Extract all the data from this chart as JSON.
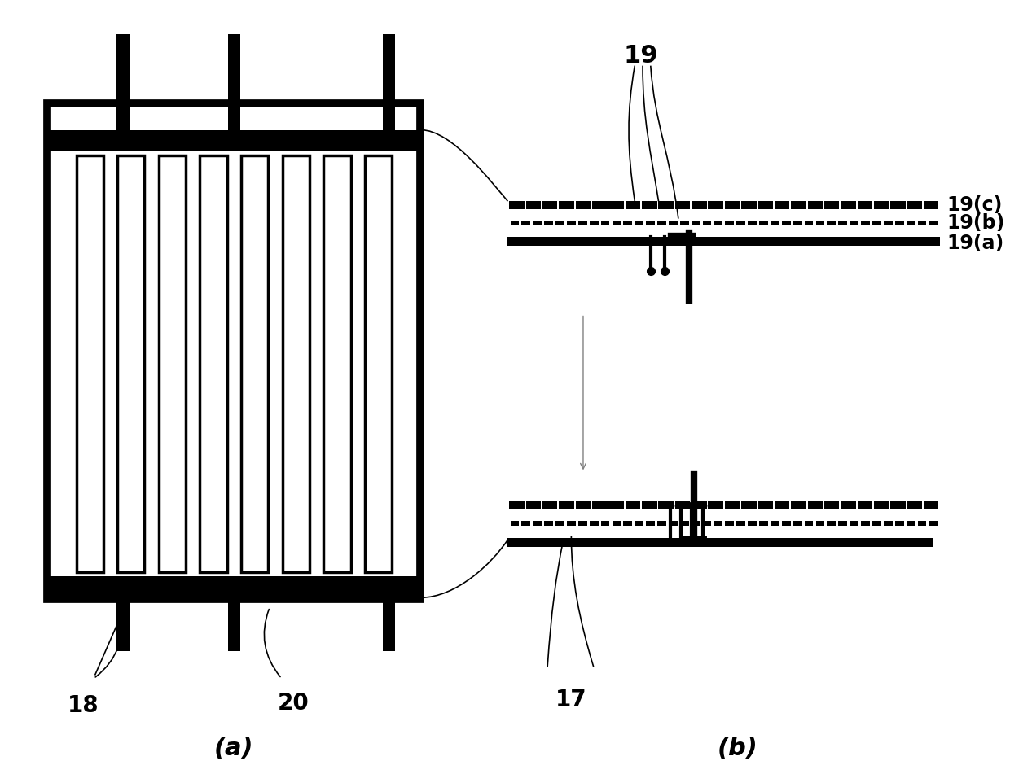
{
  "bg_color": "#ffffff",
  "line_color": "#000000",
  "thick_lw": 6,
  "medium_lw": 2.5,
  "thin_lw": 1.2,
  "label_18": "18",
  "label_19": "19",
  "label_19a": "19(a)",
  "label_19b": "19(b)",
  "label_19c": "19(c)",
  "label_20": "20",
  "label_17": "17",
  "label_a": "(a)",
  "label_b": "(b)",
  "font_size_large": 20,
  "font_size_medium": 17
}
